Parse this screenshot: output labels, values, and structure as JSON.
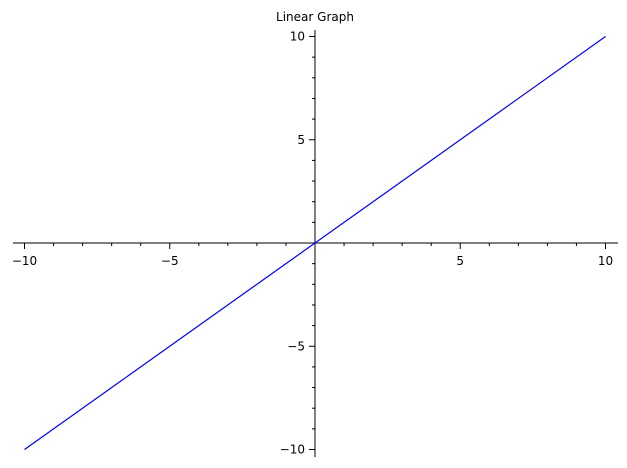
{
  "chart_data": {
    "type": "line",
    "title": "Linear Graph",
    "xlabel": "",
    "ylabel": "",
    "xlim": [
      -10,
      10
    ],
    "ylim": [
      -10,
      10
    ],
    "x_ticks_major": [
      -10,
      -5,
      5,
      10
    ],
    "y_ticks_major": [
      -10,
      -5,
      5,
      10
    ],
    "x_tick_labels": [
      "−10",
      "−5",
      "5",
      "10"
    ],
    "y_tick_labels": [
      "−10",
      "−5",
      "5",
      "10"
    ],
    "minor_tick_step": 1,
    "grid": false,
    "axes_through_origin": true,
    "series": [
      {
        "color": "#0000ff",
        "x": [
          -10,
          10
        ],
        "y": [
          -10,
          10
        ]
      }
    ]
  }
}
